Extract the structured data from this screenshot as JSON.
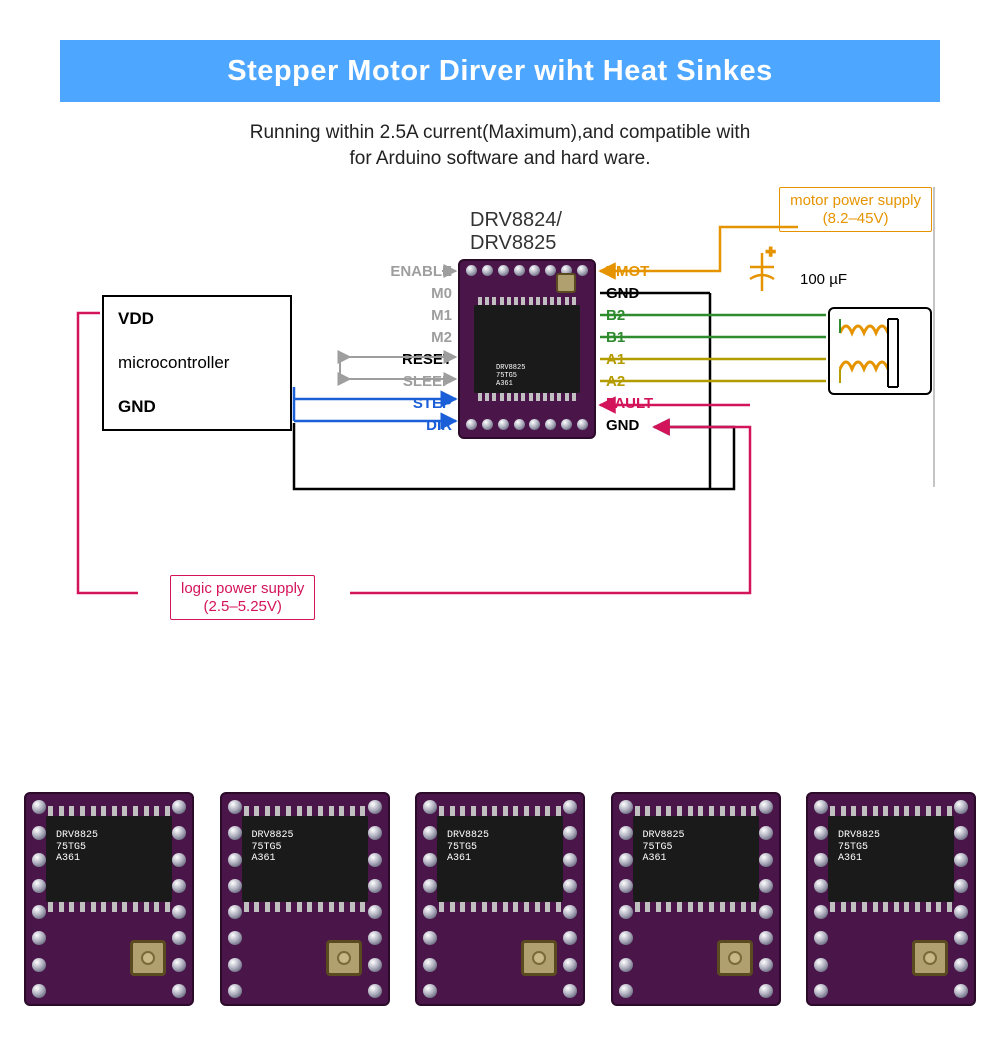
{
  "banner_title": "Stepper Motor Dirver wiht Heat Sinkes",
  "subtitle_line1": "Running within 2.5A current(Maximum),and compatible with",
  "subtitle_line2": "for Arduino software and hard ware.",
  "chip_title": "DRV8824/\nDRV8825",
  "mcu": {
    "vdd": "VDD",
    "label": "microcontroller",
    "gnd": "GND"
  },
  "left_pins": [
    "ENABLE",
    "M0",
    "M1",
    "M2",
    "RESET",
    "SLEEP",
    "STEP",
    "DIR"
  ],
  "right_pins": [
    "VMOT",
    "GND",
    "B2",
    "B1",
    "A1",
    "A2",
    "FAULT",
    "GND"
  ],
  "motor_psu": {
    "text": "motor power supply\n(8.2–45V)",
    "color": "#e59400",
    "border": "#e59400"
  },
  "logic_psu": {
    "text": "logic power supply\n(2.5–5.25V)",
    "color": "#d4145a",
    "border": "#d4145a"
  },
  "cap_label": "100 µF",
  "colors": {
    "enable": "#9e9e9e",
    "reset": "#9e9e9e",
    "sleep": "#9e9e9e",
    "step": "#1b5fd8",
    "dir": "#1b5fd8",
    "vmot": "#e59400",
    "gnd": "#000",
    "fault": "#d4145a",
    "b": "#2e8b2e",
    "a": "#b39b00",
    "red": "#d4145a",
    "blue": "#1b5fd8"
  },
  "ic_text": "DRV8825\n75TG5\nA361",
  "module_count": 5,
  "module_holes_per_side": 8,
  "module_legs": 12,
  "board_pins": 8,
  "board_ic_pins": 14
}
